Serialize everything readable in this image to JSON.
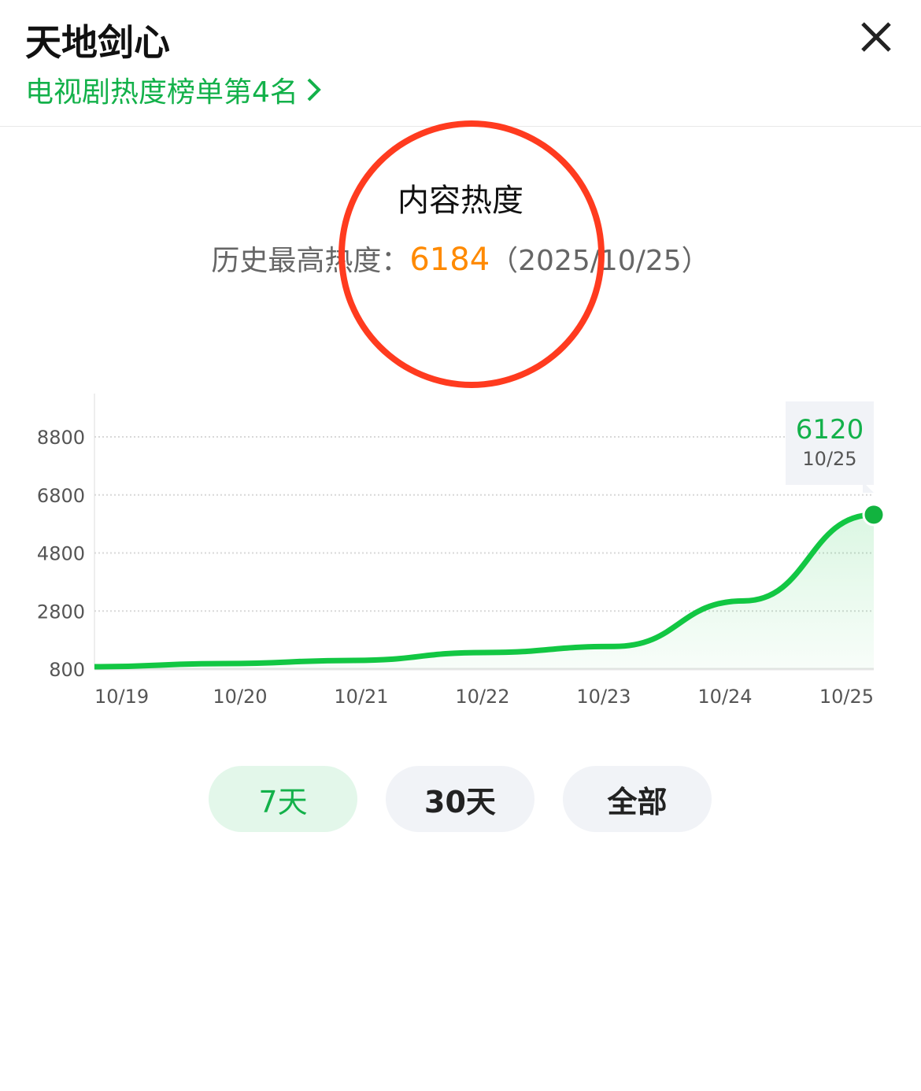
{
  "header": {
    "title": "天地剑心",
    "rank_link": "电视剧热度榜单第4名"
  },
  "section": {
    "title": "内容热度",
    "history_label": "历史最高热度：",
    "history_value": "6184",
    "history_date": "（2025/10/25）"
  },
  "colors": {
    "accent": "#13b14a",
    "line": "#12c743",
    "highlight": "#ff8a00",
    "annotation": "#ff3b1f"
  },
  "chart_data": {
    "type": "area",
    "categories": [
      "10/19",
      "10/20",
      "10/21",
      "10/22",
      "10/23",
      "10/24",
      "10/25"
    ],
    "values": [
      880,
      990,
      1100,
      1370,
      1580,
      3150,
      6120
    ],
    "yticks": [
      "8800",
      "6800",
      "4800",
      "2800",
      "800"
    ],
    "ylim": [
      800,
      8800
    ],
    "grid": true,
    "tooltip": {
      "value": "6120",
      "date": "10/25"
    }
  },
  "range_buttons": [
    {
      "label": "7天",
      "active": true
    },
    {
      "label": "30天",
      "active": false
    },
    {
      "label": "全部",
      "active": false
    }
  ]
}
